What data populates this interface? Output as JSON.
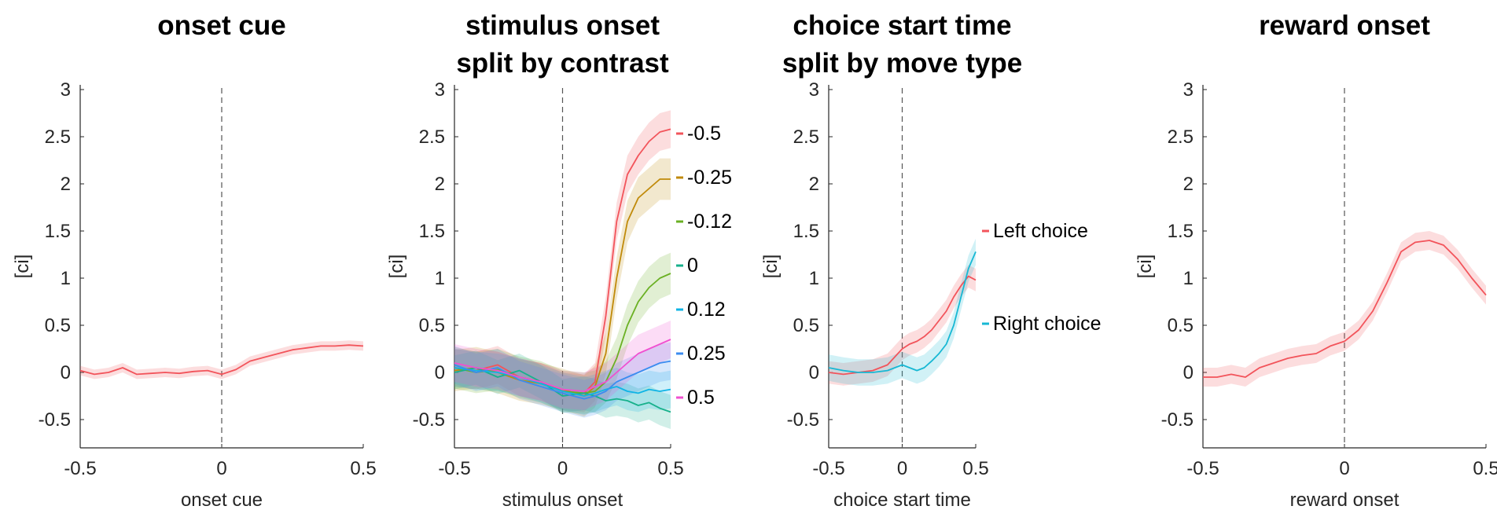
{
  "chart_data": [
    {
      "type": "line",
      "title": [
        "onset cue"
      ],
      "xlabel": "onset cue",
      "ylabel": "[ci]",
      "xlim": [
        -0.5,
        0.5
      ],
      "ylim": [
        -0.8,
        3.05
      ],
      "xticks": [
        "-0.5",
        "0",
        "0.5"
      ],
      "yticks": [
        "-0.5",
        "0",
        "0.5",
        "1",
        "1.5",
        "2",
        "2.5",
        "3"
      ],
      "vline_x": 0,
      "series": [
        {
          "color": "#f2545b",
          "x": [
            -0.5,
            -0.45,
            -0.4,
            -0.35,
            -0.3,
            -0.25,
            -0.2,
            -0.15,
            -0.1,
            -0.05,
            0,
            0.05,
            0.1,
            0.15,
            0.2,
            0.25,
            0.3,
            0.35,
            0.4,
            0.45,
            0.5
          ],
          "y": [
            0.02,
            -0.02,
            0.0,
            0.05,
            -0.02,
            -0.01,
            0.0,
            -0.01,
            0.01,
            0.02,
            -0.02,
            0.03,
            0.12,
            0.16,
            0.2,
            0.24,
            0.26,
            0.28,
            0.28,
            0.29,
            0.28
          ],
          "ci": 0.05
        }
      ]
    },
    {
      "type": "line",
      "title": [
        "stimulus onset",
        "split by contrast"
      ],
      "xlabel": "stimulus onset",
      "ylabel": "[ci]",
      "xlim": [
        -0.5,
        0.5
      ],
      "ylim": [
        -0.8,
        3.05
      ],
      "xticks": [
        "-0.5",
        "0",
        "0.5"
      ],
      "yticks": [
        "-0.5",
        "0",
        "0.5",
        "1",
        "1.5",
        "2",
        "2.5",
        "3"
      ],
      "vline_x": 0,
      "legend_position": "right",
      "series": [
        {
          "name": "-0.5",
          "color": "#f2545b",
          "x": [
            -0.5,
            -0.4,
            -0.3,
            -0.2,
            -0.1,
            0,
            0.1,
            0.15,
            0.2,
            0.25,
            0.3,
            0.35,
            0.4,
            0.45,
            0.5
          ],
          "y": [
            0.05,
            0.02,
            0.08,
            -0.05,
            -0.1,
            -0.2,
            -0.22,
            -0.1,
            0.6,
            1.6,
            2.1,
            2.3,
            2.45,
            2.55,
            2.58
          ],
          "ci": 0.2
        },
        {
          "name": "-0.25",
          "color": "#c08a0a",
          "x": [
            -0.5,
            -0.4,
            -0.3,
            -0.2,
            -0.1,
            0,
            0.1,
            0.15,
            0.2,
            0.25,
            0.3,
            0.35,
            0.4,
            0.45,
            0.5
          ],
          "y": [
            0.02,
            0.05,
            0.0,
            -0.08,
            -0.12,
            -0.18,
            -0.25,
            -0.15,
            0.2,
            1.0,
            1.6,
            1.85,
            1.95,
            2.05,
            2.05
          ],
          "ci": 0.22
        },
        {
          "name": "-0.12",
          "color": "#6ab023",
          "x": [
            -0.5,
            -0.4,
            -0.3,
            -0.2,
            -0.1,
            0,
            0.1,
            0.15,
            0.2,
            0.25,
            0.3,
            0.35,
            0.4,
            0.45,
            0.5
          ],
          "y": [
            0.05,
            0.0,
            0.03,
            -0.05,
            -0.1,
            -0.2,
            -0.22,
            -0.2,
            -0.1,
            0.15,
            0.5,
            0.75,
            0.9,
            1.0,
            1.05
          ],
          "ci": 0.22
        },
        {
          "name": "0",
          "color": "#17b18c",
          "x": [
            -0.5,
            -0.4,
            -0.3,
            -0.2,
            -0.1,
            0,
            0.1,
            0.15,
            0.2,
            0.25,
            0.3,
            0.35,
            0.4,
            0.45,
            0.5
          ],
          "y": [
            0.0,
            0.05,
            -0.05,
            0.02,
            -0.1,
            -0.25,
            -0.22,
            -0.25,
            -0.3,
            -0.28,
            -0.3,
            -0.35,
            -0.32,
            -0.38,
            -0.42
          ],
          "ci": 0.18
        },
        {
          "name": "0.12",
          "color": "#0fb4e5",
          "x": [
            -0.5,
            -0.4,
            -0.3,
            -0.2,
            -0.1,
            0,
            0.1,
            0.15,
            0.2,
            0.25,
            0.3,
            0.35,
            0.4,
            0.45,
            0.5
          ],
          "y": [
            0.05,
            0.02,
            0.0,
            -0.05,
            -0.12,
            -0.2,
            -0.25,
            -0.22,
            -0.18,
            -0.15,
            -0.2,
            -0.22,
            -0.18,
            -0.2,
            -0.18
          ],
          "ci": 0.2
        },
        {
          "name": "0.25",
          "color": "#3b8cf0",
          "x": [
            -0.5,
            -0.4,
            -0.3,
            -0.2,
            -0.1,
            0,
            0.1,
            0.15,
            0.2,
            0.25,
            0.3,
            0.35,
            0.4,
            0.45,
            0.5
          ],
          "y": [
            0.08,
            0.0,
            0.05,
            -0.08,
            -0.15,
            -0.22,
            -0.28,
            -0.25,
            -0.2,
            -0.1,
            -0.05,
            0.0,
            0.05,
            0.1,
            0.12
          ],
          "ci": 0.2
        },
        {
          "name": "0.5",
          "color": "#f050d0",
          "x": [
            -0.5,
            -0.4,
            -0.3,
            -0.2,
            -0.1,
            0,
            0.1,
            0.15,
            0.2,
            0.25,
            0.3,
            0.35,
            0.4,
            0.45,
            0.5
          ],
          "y": [
            0.1,
            0.05,
            0.02,
            -0.05,
            -0.1,
            -0.18,
            -0.2,
            -0.15,
            -0.1,
            0.0,
            0.1,
            0.2,
            0.25,
            0.3,
            0.35
          ],
          "ci": 0.2
        }
      ]
    },
    {
      "type": "line",
      "title": [
        "choice start time",
        "split by move type"
      ],
      "xlabel": "choice start time",
      "ylabel": "[ci]",
      "xlim": [
        -0.5,
        0.5
      ],
      "ylim": [
        -0.8,
        3.05
      ],
      "xticks": [
        "-0.5",
        "0",
        "0.5"
      ],
      "yticks": [
        "-0.5",
        "0",
        "0.5",
        "1",
        "1.5",
        "2",
        "2.5",
        "3"
      ],
      "vline_x": 0,
      "legend_position": "right",
      "series": [
        {
          "name": "Left choice",
          "color": "#f2545b",
          "x": [
            -0.5,
            -0.4,
            -0.3,
            -0.2,
            -0.1,
            0,
            0.05,
            0.1,
            0.15,
            0.2,
            0.25,
            0.3,
            0.35,
            0.4,
            0.45,
            0.5
          ],
          "y": [
            0.0,
            -0.02,
            0.0,
            0.02,
            0.08,
            0.25,
            0.3,
            0.33,
            0.38,
            0.45,
            0.55,
            0.65,
            0.8,
            0.92,
            1.02,
            0.98
          ],
          "ci": 0.12
        },
        {
          "name": "Right choice",
          "color": "#17b8d4",
          "x": [
            -0.5,
            -0.4,
            -0.3,
            -0.2,
            -0.1,
            0,
            0.05,
            0.1,
            0.15,
            0.2,
            0.25,
            0.3,
            0.35,
            0.4,
            0.45,
            0.5
          ],
          "y": [
            0.05,
            0.02,
            0.0,
            0.0,
            0.02,
            0.08,
            0.05,
            0.02,
            0.05,
            0.12,
            0.2,
            0.3,
            0.5,
            0.8,
            1.1,
            1.28
          ],
          "ci": 0.14
        }
      ]
    },
    {
      "type": "line",
      "title": [
        "reward onset"
      ],
      "xlabel": "reward onset",
      "ylabel": "[ci]",
      "xlim": [
        -0.5,
        0.5
      ],
      "ylim": [
        -0.8,
        3.05
      ],
      "xticks": [
        "-0.5",
        "0",
        "0.5"
      ],
      "yticks": [
        "-0.5",
        "0",
        "0.5",
        "1",
        "1.5",
        "2",
        "2.5",
        "3"
      ],
      "vline_x": 0,
      "series": [
        {
          "color": "#f2545b",
          "x": [
            -0.5,
            -0.45,
            -0.4,
            -0.35,
            -0.3,
            -0.25,
            -0.2,
            -0.15,
            -0.1,
            -0.05,
            0,
            0.05,
            0.1,
            0.15,
            0.2,
            0.25,
            0.3,
            0.35,
            0.4,
            0.45,
            0.5
          ],
          "y": [
            -0.05,
            -0.05,
            -0.02,
            -0.05,
            0.05,
            0.1,
            0.15,
            0.18,
            0.2,
            0.28,
            0.33,
            0.45,
            0.65,
            0.95,
            1.28,
            1.38,
            1.4,
            1.35,
            1.2,
            1.0,
            0.82
          ],
          "ci": 0.1
        }
      ]
    }
  ]
}
